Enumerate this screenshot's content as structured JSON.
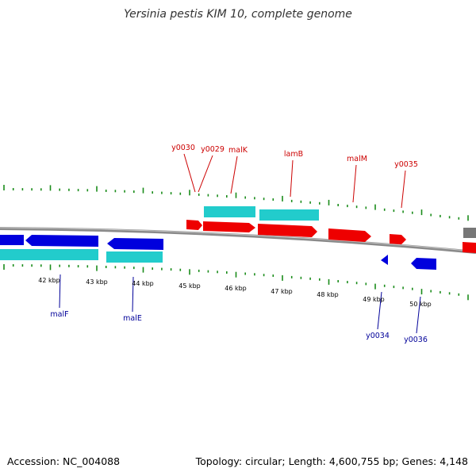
{
  "title": "Yersinia pestis KIM 10, complete genome",
  "footer": {
    "accession": "Accession: NC_004088",
    "topology": "Topology: circular; Length: 4,600,755 bp; Genes: 4,148"
  },
  "colors": {
    "forward_gene": "#ee0000",
    "reverse_gene": "#0000dd",
    "cds_band": "#22cccc",
    "forward_label": "#cc0000",
    "reverse_label": "#000099",
    "tick": "#1a8c1a",
    "backbone": "#888888",
    "other_gene": "#777777"
  },
  "scale_labels": [
    "42 kbp",
    "43 kbp",
    "44 kbp",
    "45 kbp",
    "46 kbp",
    "47 kbp",
    "48 kbp",
    "49 kbp",
    "50 kbp"
  ],
  "forward_labels": [
    "y0030",
    "y0029",
    "malK",
    "lamB",
    "malM",
    "y0035"
  ],
  "reverse_labels": [
    "malF",
    "malE",
    "y0034",
    "y0036"
  ]
}
